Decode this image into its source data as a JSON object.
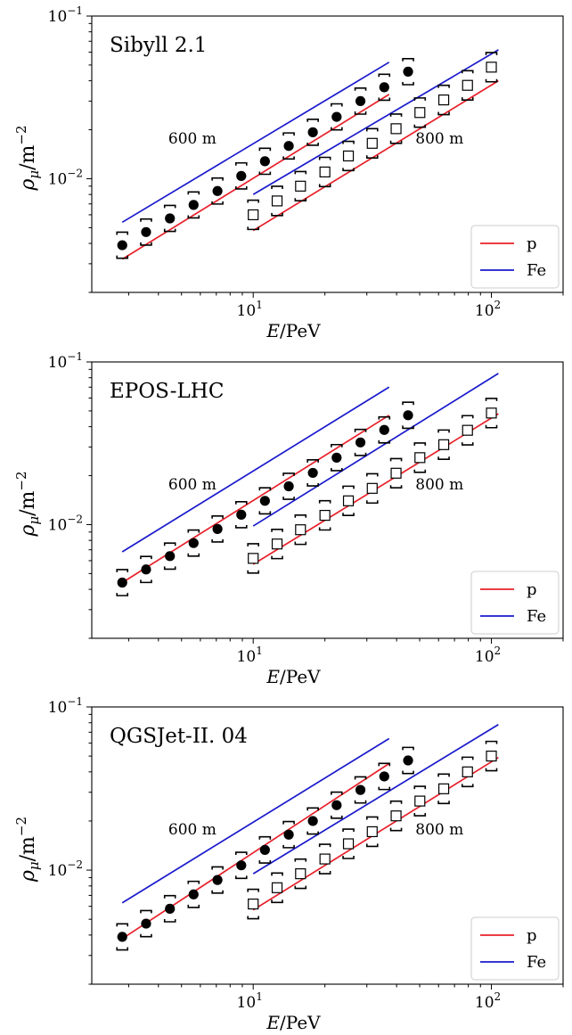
{
  "chart_data": [
    {
      "type": "scatter",
      "title": "Sibyll 2.1",
      "xlabel": "E/PeV",
      "ylabel": "ρμ/m−2",
      "xscale": "log",
      "yscale": "log",
      "xlim": [
        2.1,
        200
      ],
      "ylim": [
        0.002,
        0.1
      ],
      "x_ticks": [
        "10",
        "10"
      ],
      "annotations": [
        "600 m",
        "800 m"
      ],
      "legend": {
        "placement": "lower-right",
        "entries": [
          {
            "label": "p",
            "color": "#e8202a"
          },
          {
            "label": "Fe",
            "color": "#1a1acc"
          }
        ]
      },
      "series": [
        {
          "name": "p",
          "kind": "line",
          "color": "#e8202a",
          "x": [
            2.82,
            37.2
          ],
          "y": [
            0.0032,
            0.033
          ]
        },
        {
          "name": "p",
          "kind": "line",
          "color": "#e8202a",
          "x": [
            10.0,
            107
          ],
          "y": [
            0.0048,
            0.04
          ]
        },
        {
          "name": "Fe",
          "kind": "line",
          "color": "#1a1acc",
          "x": [
            2.82,
            37.2
          ],
          "y": [
            0.0054,
            0.052
          ]
        },
        {
          "name": "Fe",
          "kind": "line",
          "color": "#1a1acc",
          "x": [
            10.0,
            107
          ],
          "y": [
            0.008,
            0.062
          ]
        },
        {
          "kind": "points",
          "marker": "filled-circle",
          "x": [
            2.82,
            3.55,
            4.47,
            5.62,
            7.08,
            8.91,
            11.2,
            14.1,
            17.8,
            22.4,
            28.2,
            35.5,
            44.7
          ],
          "y": [
            0.0039,
            0.0047,
            0.0057,
            0.0069,
            0.0084,
            0.0104,
            0.0128,
            0.0159,
            0.0193,
            0.024,
            0.03,
            0.0365,
            0.0455
          ],
          "err": [
            0.08,
            0.08,
            0.08,
            0.08,
            0.08,
            0.08,
            0.08,
            0.08,
            0.08,
            0.08,
            0.08,
            0.08,
            0.08
          ]
        },
        {
          "kind": "points",
          "marker": "open-square",
          "x": [
            10.0,
            12.6,
            15.8,
            20.0,
            25.1,
            31.6,
            39.8,
            50.1,
            63.1,
            79.4,
            100
          ],
          "y": [
            0.006,
            0.0073,
            0.009,
            0.011,
            0.0138,
            0.0165,
            0.0203,
            0.0255,
            0.0305,
            0.0375,
            0.0485
          ],
          "err": [
            0.09,
            0.09,
            0.09,
            0.09,
            0.09,
            0.09,
            0.09,
            0.09,
            0.09,
            0.09,
            0.09
          ]
        }
      ]
    },
    {
      "type": "scatter",
      "title": "EPOS-LHC",
      "xlabel": "E/PeV",
      "ylabel": "ρμ/m−2",
      "xscale": "log",
      "yscale": "log",
      "xlim": [
        2.1,
        200
      ],
      "ylim": [
        0.002,
        0.1
      ],
      "x_ticks": [
        "10",
        "10"
      ],
      "annotations": [
        "600 m",
        "800 m"
      ],
      "legend": {
        "placement": "lower-right",
        "entries": [
          {
            "label": "p",
            "color": "#e8202a"
          },
          {
            "label": "Fe",
            "color": "#1a1acc"
          }
        ]
      },
      "series": [
        {
          "name": "p",
          "kind": "line",
          "color": "#e8202a",
          "x": [
            2.82,
            37.2
          ],
          "y": [
            0.0044,
            0.047
          ]
        },
        {
          "name": "p",
          "kind": "line",
          "color": "#e8202a",
          "x": [
            10.0,
            107
          ],
          "y": [
            0.0057,
            0.048
          ]
        },
        {
          "name": "Fe",
          "kind": "line",
          "color": "#1a1acc",
          "x": [
            2.82,
            37.2
          ],
          "y": [
            0.0068,
            0.07
          ]
        },
        {
          "name": "Fe",
          "kind": "line",
          "color": "#1a1acc",
          "x": [
            10.0,
            107
          ],
          "y": [
            0.0098,
            0.085
          ]
        },
        {
          "kind": "points",
          "marker": "filled-circle",
          "x": [
            2.82,
            3.55,
            4.47,
            5.62,
            7.08,
            8.91,
            11.2,
            14.1,
            17.8,
            22.4,
            28.2,
            35.5,
            44.7
          ],
          "y": [
            0.0044,
            0.0053,
            0.0064,
            0.0077,
            0.0094,
            0.0115,
            0.014,
            0.0172,
            0.0208,
            0.0258,
            0.032,
            0.0382,
            0.047
          ],
          "err": [
            0.08,
            0.08,
            0.08,
            0.08,
            0.08,
            0.08,
            0.08,
            0.08,
            0.08,
            0.08,
            0.08,
            0.08,
            0.08
          ]
        },
        {
          "kind": "points",
          "marker": "open-square",
          "x": [
            10.0,
            12.6,
            15.8,
            20.0,
            25.1,
            31.6,
            39.8,
            50.1,
            63.1,
            79.4,
            100
          ],
          "y": [
            0.0062,
            0.0076,
            0.0093,
            0.0114,
            0.014,
            0.0167,
            0.0207,
            0.0258,
            0.031,
            0.038,
            0.0485
          ],
          "err": [
            0.09,
            0.09,
            0.09,
            0.09,
            0.09,
            0.09,
            0.09,
            0.09,
            0.09,
            0.09,
            0.09
          ]
        }
      ]
    },
    {
      "type": "scatter",
      "title": "QGSJet-II. 04",
      "xlabel": "E/PeV",
      "ylabel": "ρμ/m−2",
      "xscale": "log",
      "yscale": "log",
      "xlim": [
        2.1,
        200
      ],
      "ylim": [
        0.002,
        0.1
      ],
      "x_ticks": [
        "10",
        "10"
      ],
      "annotations": [
        "600 m",
        "800 m"
      ],
      "legend": {
        "placement": "lower-right",
        "entries": [
          {
            "label": "p",
            "color": "#e8202a"
          },
          {
            "label": "Fe",
            "color": "#1a1acc"
          }
        ]
      },
      "series": [
        {
          "name": "p",
          "kind": "line",
          "color": "#e8202a",
          "x": [
            2.82,
            37.2
          ],
          "y": [
            0.0038,
            0.045
          ]
        },
        {
          "name": "p",
          "kind": "line",
          "color": "#e8202a",
          "x": [
            10.0,
            107
          ],
          "y": [
            0.0057,
            0.049
          ]
        },
        {
          "name": "Fe",
          "kind": "line",
          "color": "#1a1acc",
          "x": [
            2.82,
            37.2
          ],
          "y": [
            0.0063,
            0.064
          ]
        },
        {
          "name": "Fe",
          "kind": "line",
          "color": "#1a1acc",
          "x": [
            10.0,
            107
          ],
          "y": [
            0.0095,
            0.078
          ]
        },
        {
          "kind": "points",
          "marker": "filled-circle",
          "x": [
            2.82,
            3.55,
            4.47,
            5.62,
            7.08,
            8.91,
            11.2,
            14.1,
            17.8,
            22.4,
            28.2,
            35.5,
            44.7
          ],
          "y": [
            0.0039,
            0.0047,
            0.0058,
            0.0071,
            0.0087,
            0.0107,
            0.0133,
            0.0165,
            0.02,
            0.025,
            0.031,
            0.0375,
            0.047
          ],
          "err": [
            0.08,
            0.08,
            0.08,
            0.08,
            0.08,
            0.08,
            0.08,
            0.08,
            0.08,
            0.08,
            0.08,
            0.08,
            0.08
          ]
        },
        {
          "kind": "points",
          "marker": "open-square",
          "x": [
            10.0,
            12.6,
            15.8,
            20.0,
            25.1,
            31.6,
            39.8,
            50.1,
            63.1,
            79.4,
            100
          ],
          "y": [
            0.0062,
            0.0078,
            0.0095,
            0.0117,
            0.0145,
            0.0172,
            0.0215,
            0.0265,
            0.0315,
            0.04,
            0.05
          ],
          "err": [
            0.09,
            0.09,
            0.09,
            0.09,
            0.09,
            0.09,
            0.09,
            0.09,
            0.09,
            0.09,
            0.09
          ]
        }
      ]
    }
  ],
  "tick_labels": {
    "y_top_base": "10",
    "y_top_exp": "−1",
    "y_mid_base": "10",
    "y_mid_exp": "−2",
    "x_a_base": "10",
    "x_a_exp": "1",
    "x_b_base": "10",
    "x_b_exp": "2"
  },
  "axis_text": {
    "xlabel_italic": "E",
    "xlabel_rest": "/PeV",
    "ylabel_rho": "ρ",
    "ylabel_mu": "μ",
    "ylabel_rest": "/m",
    "ylabel_exp": "−2"
  }
}
